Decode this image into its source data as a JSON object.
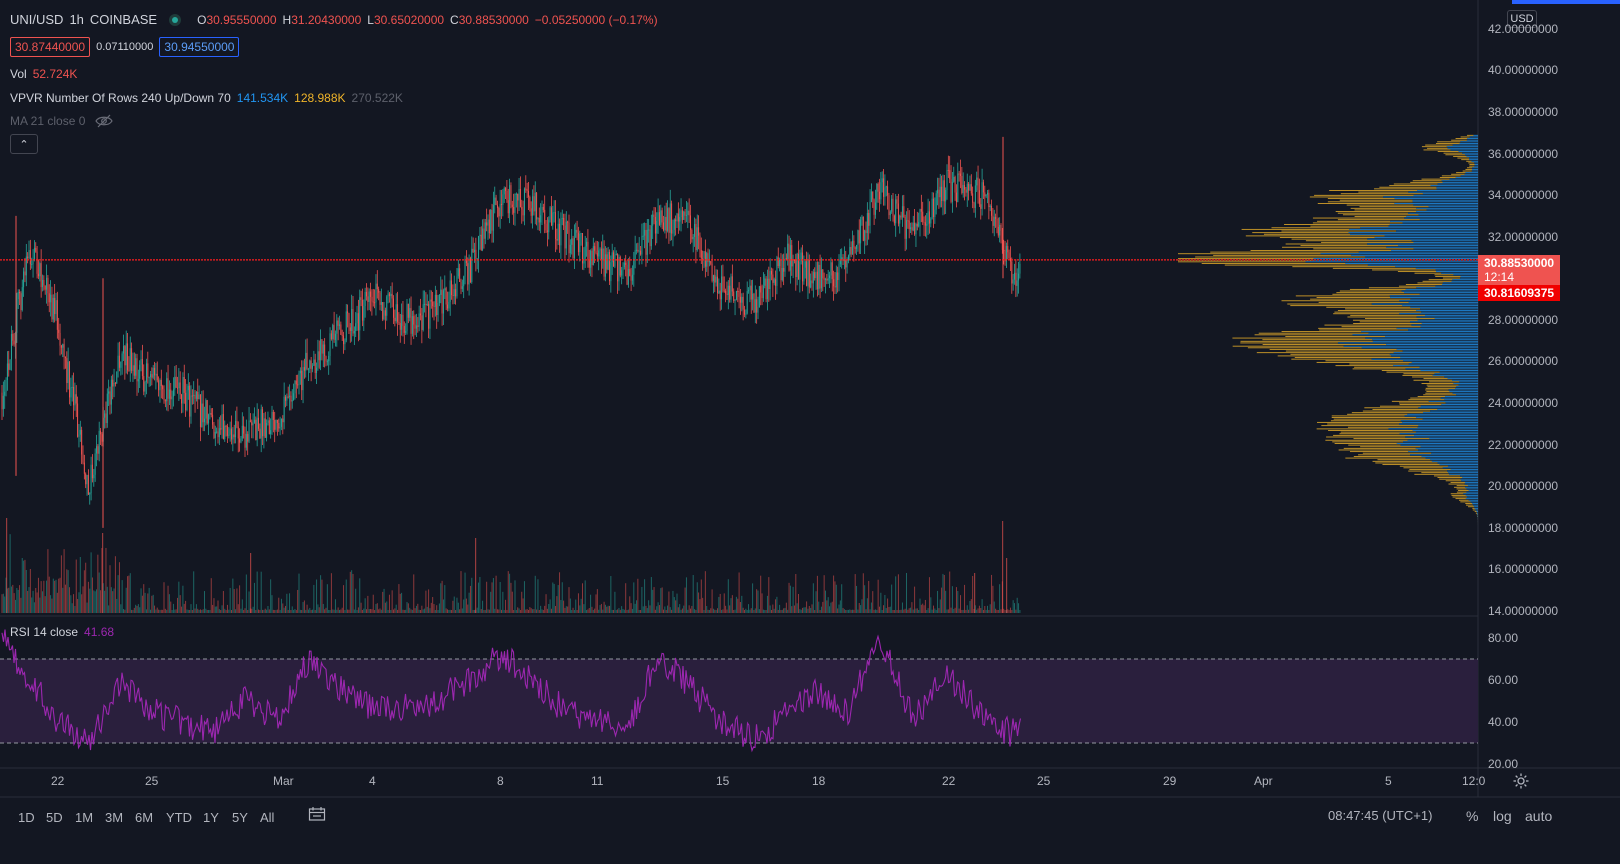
{
  "legend": {
    "symbol": "UNI/USD",
    "interval": "1h",
    "exchange": "COINBASE",
    "ohlc": {
      "o_key": "O",
      "o_val": "30.95550000",
      "h_key": "H",
      "h_val": "31.20430000",
      "l_key": "L",
      "l_val": "30.65020000",
      "c_key": "C",
      "c_val": "30.88530000",
      "change": "−0.05250000 (−0.17%)"
    },
    "bid": "30.87440000",
    "spread": "0.07110000",
    "ask": "30.94550000",
    "vol_label": "Vol",
    "vol_value": "52.724K",
    "vpvr_label": "VPVR Number Of Rows 240 Up/Down 70",
    "vpvr_up": "141.534K",
    "vpvr_down": "128.988K",
    "vpvr_total": "270.522K",
    "ma_label": "MA 21 close 0",
    "collapse_glyph": "⌃"
  },
  "price_axis": {
    "currency_button": "USD",
    "ticks": [
      "42.00000000",
      "40.00000000",
      "38.00000000",
      "36.00000000",
      "34.00000000",
      "32.00000000",
      "30.00000000",
      "28.00000000",
      "26.00000000",
      "24.00000000",
      "22.00000000",
      "20.00000000",
      "18.00000000",
      "16.00000000",
      "14.00000000"
    ],
    "last_price": "30.88530000",
    "countdown": "12:14",
    "crosshair_price": "30.81609375"
  },
  "rsi": {
    "label": "RSI 14 close",
    "value": "41.68",
    "ticks": [
      "80.00",
      "60.00",
      "40.00",
      "20.00"
    ],
    "upper_band": 70,
    "lower_band": 30
  },
  "time_axis": {
    "labels": [
      "22",
      "25",
      "Mar",
      "4",
      "8",
      "11",
      "15",
      "18",
      "22",
      "25",
      "29",
      "Apr",
      "5",
      "12:0"
    ]
  },
  "bottom_bar": {
    "ranges": [
      "1D",
      "5D",
      "1M",
      "3M",
      "6M",
      "YTD",
      "1Y",
      "5Y",
      "All"
    ],
    "clock": "08:47:45 (UTC+1)",
    "percent": "%",
    "log": "log",
    "auto": "auto"
  },
  "icons": {
    "status": "live-status-icon",
    "eye": "eye-crossed-icon",
    "settings": "gear-icon",
    "calendar": "calendar-range-icon"
  },
  "colors": {
    "background": "#131722",
    "up": "#26a69a",
    "down": "#ef5350",
    "vpvr_up": "#2196f3",
    "vpvr_down": "#f0b429",
    "rsi_line": "#9c27b0",
    "rsi_band": "#2a1f3d",
    "price_line": "#ff1d1d"
  },
  "chart_data": {
    "type": "candlestick",
    "y_range": [
      14,
      43
    ],
    "last_close": 30.8853,
    "path_keypoints": [
      {
        "date": "Feb 20",
        "price": 24.5
      },
      {
        "date": "Feb 21",
        "price": 31.5
      },
      {
        "date": "Feb 22",
        "price": 28.0
      },
      {
        "date": "Feb 23",
        "price": 20.0
      },
      {
        "date": "Feb 24",
        "price": 26.5
      },
      {
        "date": "Feb 25",
        "price": 25.0
      },
      {
        "date": "Feb 26",
        "price": 24.5
      },
      {
        "date": "Feb 27",
        "price": 23.0
      },
      {
        "date": "Feb 28",
        "price": 22.5
      },
      {
        "date": "Mar 1",
        "price": 23.5
      },
      {
        "date": "Mar 2",
        "price": 26.0
      },
      {
        "date": "Mar 3",
        "price": 27.5
      },
      {
        "date": "Mar 4",
        "price": 29.0
      },
      {
        "date": "Mar 5",
        "price": 28.0
      },
      {
        "date": "Mar 6",
        "price": 28.5
      },
      {
        "date": "Mar 7",
        "price": 30.5
      },
      {
        "date": "Mar 8",
        "price": 34.0
      },
      {
        "date": "Mar 9",
        "price": 33.5
      },
      {
        "date": "Mar 10",
        "price": 32.0
      },
      {
        "date": "Mar 11",
        "price": 31.0
      },
      {
        "date": "Mar 12",
        "price": 30.0
      },
      {
        "date": "Mar 13",
        "price": 33.0
      },
      {
        "date": "Mar 14",
        "price": 32.5
      },
      {
        "date": "Mar 15",
        "price": 29.5
      },
      {
        "date": "Mar 16",
        "price": 28.8
      },
      {
        "date": "Mar 17",
        "price": 31.0
      },
      {
        "date": "Mar 18",
        "price": 30.0
      },
      {
        "date": "Mar 19",
        "price": 30.5
      },
      {
        "date": "Mar 20",
        "price": 34.5
      },
      {
        "date": "Mar 21",
        "price": 32.0
      },
      {
        "date": "Mar 22",
        "price": 34.5
      },
      {
        "date": "Mar 23",
        "price": 34.0
      },
      {
        "date": "Mar 24",
        "price": 30.0
      },
      {
        "date": "Mar 24",
        "price": 30.9
      }
    ],
    "rsi_keypoints": [
      {
        "date": "Feb 20",
        "value": 80
      },
      {
        "date": "Feb 21",
        "value": 60
      },
      {
        "date": "Feb 22",
        "value": 40
      },
      {
        "date": "Feb 23",
        "value": 30
      },
      {
        "date": "Feb 24",
        "value": 60
      },
      {
        "date": "Feb 25",
        "value": 45
      },
      {
        "date": "Feb 27",
        "value": 35
      },
      {
        "date": "Feb 28",
        "value": 50
      },
      {
        "date": "Mar 1",
        "value": 40
      },
      {
        "date": "Mar 2",
        "value": 72
      },
      {
        "date": "Mar 3",
        "value": 55
      },
      {
        "date": "Mar 4",
        "value": 45
      },
      {
        "date": "Mar 6",
        "value": 50
      },
      {
        "date": "Mar 8",
        "value": 72
      },
      {
        "date": "Mar 10",
        "value": 45
      },
      {
        "date": "Mar 12",
        "value": 38
      },
      {
        "date": "Mar 13",
        "value": 72
      },
      {
        "date": "Mar 15",
        "value": 40
      },
      {
        "date": "Mar 16",
        "value": 32
      },
      {
        "date": "Mar 18",
        "value": 55
      },
      {
        "date": "Mar 19",
        "value": 45
      },
      {
        "date": "Mar 20",
        "value": 82
      },
      {
        "date": "Mar 21",
        "value": 42
      },
      {
        "date": "Mar 22",
        "value": 62
      },
      {
        "date": "Mar 23",
        "value": 42
      },
      {
        "date": "Mar 24",
        "value": 34
      },
      {
        "date": "Mar 24",
        "value": 41.7
      }
    ]
  }
}
